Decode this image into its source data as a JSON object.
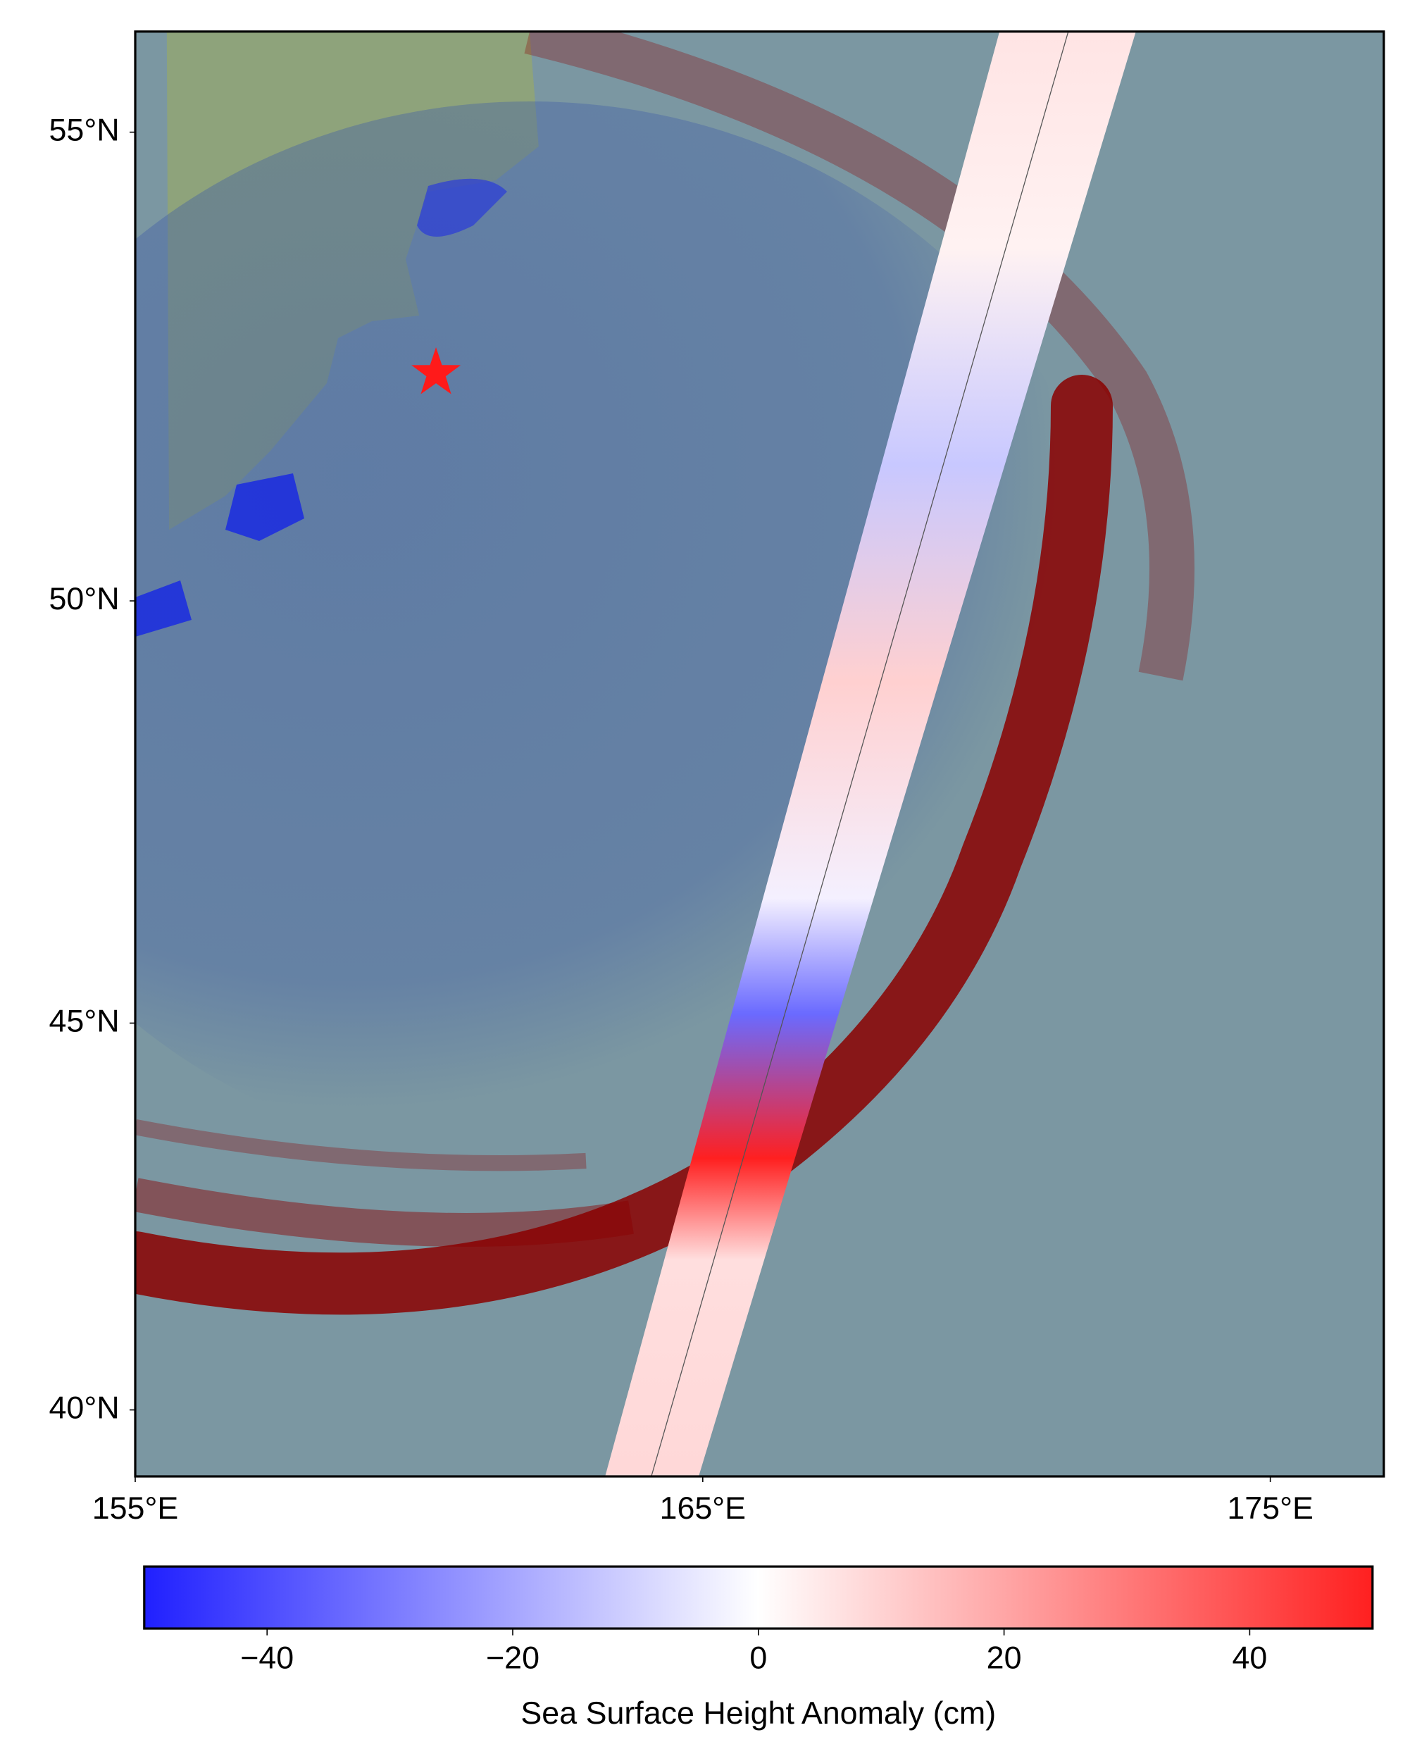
{
  "map": {
    "type": "map",
    "projection": "mercator",
    "xlim": [
      155,
      177
    ],
    "ylim": [
      39.1,
      56
    ],
    "xticks": [
      {
        "value": 155,
        "label": "155°E"
      },
      {
        "value": 165,
        "label": "165°E"
      },
      {
        "value": 175,
        "label": "175°E"
      }
    ],
    "yticks": [
      {
        "value": 40,
        "label": "40°N"
      },
      {
        "value": 45,
        "label": "45°N"
      },
      {
        "value": 50,
        "label": "50°N"
      },
      {
        "value": 55,
        "label": "55°N"
      }
    ],
    "epicenter": {
      "lon": 160.3,
      "lat": 52.5,
      "color": "#ff1a1a"
    }
  },
  "colorbar": {
    "label": "Sea Surface Height Anomaly (cm)",
    "clim": [
      -50,
      50
    ],
    "ticks": [
      {
        "value": -40,
        "label": "−40"
      },
      {
        "value": -20,
        "label": "−20"
      },
      0,
      20,
      40
    ],
    "colors": [
      "#2020ff",
      "#ffffff",
      "#ff2020"
    ]
  }
}
